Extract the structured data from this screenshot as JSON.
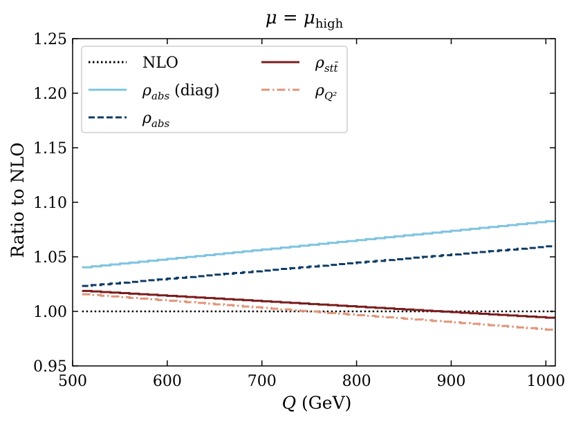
{
  "chart_data": {
    "type": "line",
    "title": "μ = μhigh",
    "title_main": "μ = μ",
    "title_sub": "high",
    "xlabel": "Q (GeV)",
    "xlabel_var": "Q",
    "xlabel_unit": " (GeV)",
    "ylabel": "Ratio to NLO",
    "xlim": [
      500,
      1010
    ],
    "ylim": [
      0.95,
      1.25
    ],
    "x_ticks": [
      500,
      600,
      700,
      800,
      900,
      1000
    ],
    "x_tick_labels": [
      "500",
      "600",
      "700",
      "800",
      "900",
      "1000"
    ],
    "y_ticks": [
      0.95,
      1.0,
      1.05,
      1.1,
      1.15,
      1.2,
      1.25
    ],
    "y_tick_labels": [
      "0.95",
      "1.00",
      "1.05",
      "1.10",
      "1.15",
      "1.20",
      "1.25"
    ],
    "legend_position": "top-left",
    "series": [
      {
        "name": "NLO",
        "label_main": "NLO",
        "label_sub": "",
        "label_suffix": "",
        "color": "#000000",
        "style": "dotted",
        "x_range": [
          510,
          1010
        ],
        "values": [
          1.0,
          1.0
        ]
      },
      {
        "name": "ρabs (diag)",
        "label_main": "ρ",
        "label_sub": "abs",
        "label_suffix": " (diag)",
        "color": "#7ec4e0",
        "style": "solid",
        "x_range": [
          510,
          1010
        ],
        "values": [
          1.04,
          1.083
        ]
      },
      {
        "name": "ρabs",
        "label_main": "ρ",
        "label_sub": "abs",
        "label_suffix": "",
        "color": "#0d3b66",
        "style": "dashed",
        "x_range": [
          510,
          1010
        ],
        "values": [
          1.023,
          1.06
        ]
      },
      {
        "name": "ρstt̄",
        "label_main": "ρ",
        "label_sub": "stt̄",
        "label_suffix": "",
        "color": "#7a1c1c",
        "style": "solid",
        "x_range": [
          510,
          1010
        ],
        "values": [
          1.019,
          0.994
        ]
      },
      {
        "name": "ρQ²",
        "label_main": "ρ",
        "label_sub": "Q²",
        "label_suffix": "",
        "color": "#e0957a",
        "style": "dashdot",
        "x_range": [
          510,
          1010
        ],
        "values": [
          1.016,
          0.983
        ]
      }
    ]
  }
}
